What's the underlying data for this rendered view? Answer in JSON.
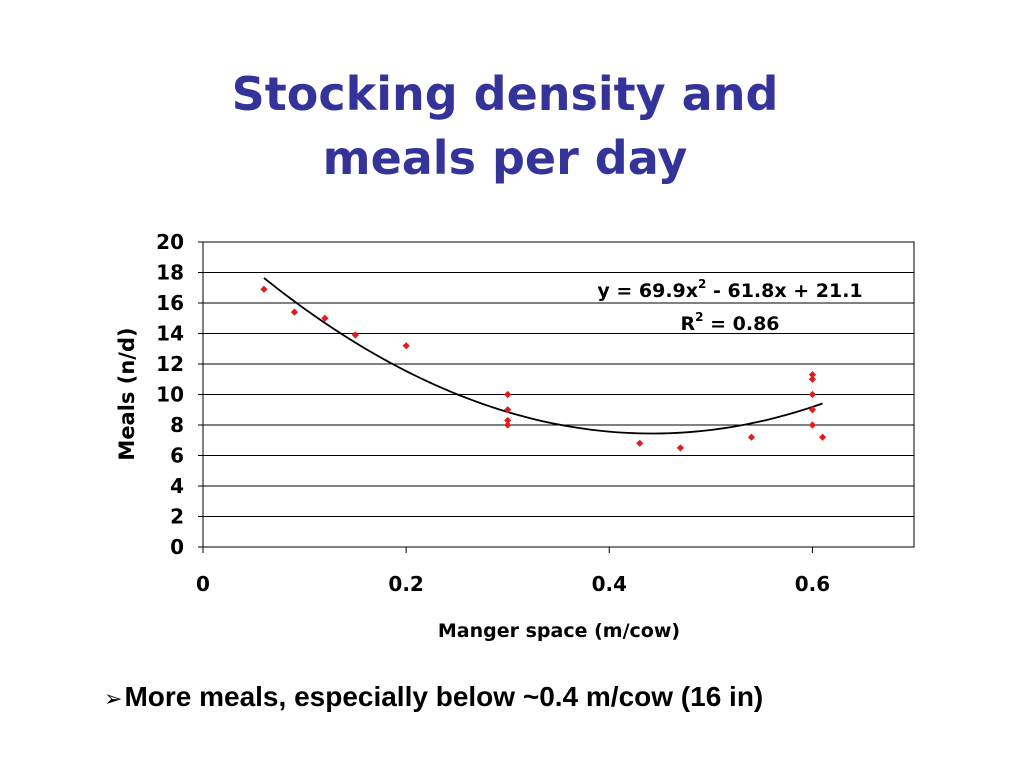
{
  "slide": {
    "title_line1": "Stocking density and",
    "title_line2": "meals per day",
    "bullet_marker": "➢",
    "bullet_text": "More meals, especially below ~0.4 m/cow (16 in)"
  },
  "chart_data": {
    "type": "scatter",
    "xlabel": "Manger space (m/cow)",
    "ylabel": "Meals (n/d)",
    "xlim": [
      0,
      0.7
    ],
    "ylim": [
      0,
      20
    ],
    "x_ticks": [
      0,
      0.2,
      0.4,
      0.6
    ],
    "x_tick_labels": [
      "0",
      "0.2",
      "0.4",
      "0.6"
    ],
    "y_ticks": [
      0,
      2,
      4,
      6,
      8,
      10,
      12,
      14,
      16,
      18,
      20
    ],
    "y_tick_labels": [
      "0",
      "2",
      "4",
      "6",
      "8",
      "10",
      "12",
      "14",
      "16",
      "18",
      "20"
    ],
    "grid": "horizontal",
    "point_color": "#e41a1c",
    "trend_color": "#000000",
    "points": [
      {
        "x": 0.06,
        "y": 16.9
      },
      {
        "x": 0.09,
        "y": 15.4
      },
      {
        "x": 0.12,
        "y": 15.0
      },
      {
        "x": 0.15,
        "y": 13.9
      },
      {
        "x": 0.2,
        "y": 13.2
      },
      {
        "x": 0.3,
        "y": 10.0
      },
      {
        "x": 0.3,
        "y": 9.0
      },
      {
        "x": 0.3,
        "y": 8.3
      },
      {
        "x": 0.3,
        "y": 8.0
      },
      {
        "x": 0.43,
        "y": 6.8
      },
      {
        "x": 0.47,
        "y": 6.5
      },
      {
        "x": 0.54,
        "y": 7.2
      },
      {
        "x": 0.6,
        "y": 11.3
      },
      {
        "x": 0.6,
        "y": 11.0
      },
      {
        "x": 0.6,
        "y": 10.0
      },
      {
        "x": 0.6,
        "y": 9.0
      },
      {
        "x": 0.6,
        "y": 8.0
      },
      {
        "x": 0.61,
        "y": 7.2
      }
    ],
    "trendline": {
      "type": "polynomial",
      "coefficients": [
        69.9,
        -61.8,
        21.1
      ],
      "x_range": [
        0.06,
        0.61
      ],
      "equation_prefix": "y = 69.9x",
      "equation_exp": "2",
      "equation_suffix": " - 61.8x + 21.1",
      "r2_prefix": "R",
      "r2_exp": "2",
      "r2_suffix": " = 0.86"
    }
  }
}
